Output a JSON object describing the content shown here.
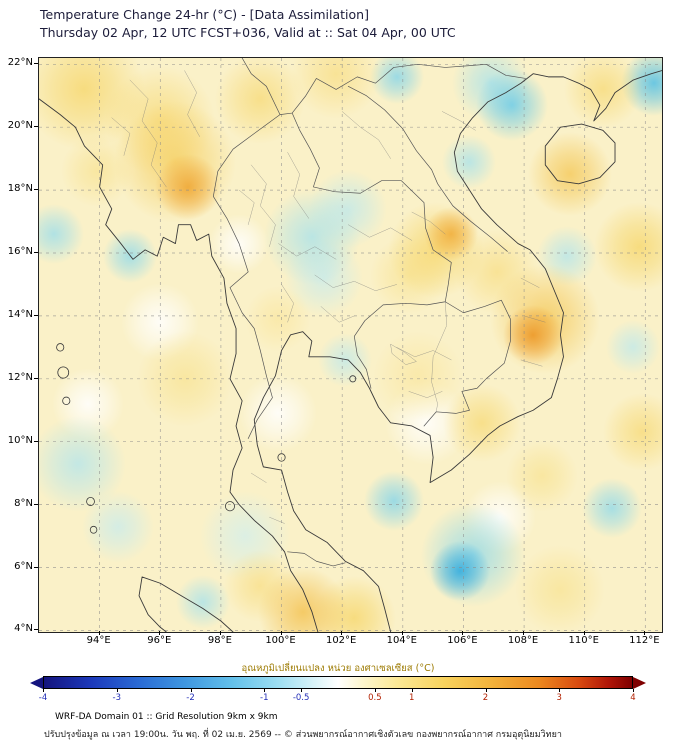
{
  "header": {
    "title": "Temperature Change 24-hr (°C) - [Data Assimilation]",
    "subtitle": "Thursday 02 Apr, 12 UTC FCST+036, Valid at :: Sat 04 Apr, 00 UTC"
  },
  "axes": {
    "lat_ticks": [
      {
        "value": 22,
        "label": "22°N"
      },
      {
        "value": 20,
        "label": "20°N"
      },
      {
        "value": 18,
        "label": "18°N"
      },
      {
        "value": 16,
        "label": "16°N"
      },
      {
        "value": 14,
        "label": "14°N"
      },
      {
        "value": 12,
        "label": "12°N"
      },
      {
        "value": 10,
        "label": "10°N"
      },
      {
        "value": 8,
        "label": "8°N"
      },
      {
        "value": 6,
        "label": "6°N"
      },
      {
        "value": 4,
        "label": "4°N"
      }
    ],
    "lon_ticks": [
      {
        "value": 94,
        "label": "94°E"
      },
      {
        "value": 96,
        "label": "96°E"
      },
      {
        "value": 98,
        "label": "98°E"
      },
      {
        "value": 100,
        "label": "100°E"
      },
      {
        "value": 102,
        "label": "102°E"
      },
      {
        "value": 104,
        "label": "104°E"
      },
      {
        "value": 106,
        "label": "106°E"
      },
      {
        "value": 108,
        "label": "108°E"
      },
      {
        "value": 110,
        "label": "110°E"
      },
      {
        "value": 112,
        "label": "112°E"
      }
    ]
  },
  "colorbar": {
    "title": "อุณหภูมิเปลี่ยนแปลง หน่วย องศาเซลเซียส (°C)",
    "min": -4,
    "max": 4,
    "negative_color": "#2430b8",
    "positive_color": "#b22000",
    "ticks": [
      {
        "value": -4,
        "label": "-4"
      },
      {
        "value": -3,
        "label": "-3"
      },
      {
        "value": -2,
        "label": "-2"
      },
      {
        "value": -1,
        "label": "-1"
      },
      {
        "value": -0.5,
        "label": "-0.5"
      },
      {
        "value": 0.5,
        "label": "0.5"
      },
      {
        "value": 1,
        "label": "1"
      },
      {
        "value": 2,
        "label": "2"
      },
      {
        "value": 3,
        "label": "3"
      },
      {
        "value": 4,
        "label": "4"
      }
    ]
  },
  "footer": {
    "line1": "WRF-DA Domain 01 :: Grid Resolution 9km x 9km",
    "line2": "ปรับปรุงข้อมูล ณ เวลา 19:00น. วัน พฤ. ที่ 02 เม.ย. 2569 -- © ส่วนพยากรณ์อากาศเชิงตัวเลข กองพยากรณ์อากาศ กรมอุตุนิยมวิทยา"
  },
  "chart_data": {
    "type": "heatmap",
    "title": "Temperature Change 24-hr (°C) - [Data Assimilation]",
    "units": "°C",
    "lon_range": [
      92.0,
      112.55
    ],
    "lat_range": [
      3.95,
      22.2
    ],
    "colorbar_range": [
      -4,
      4
    ],
    "anomaly_centers": [
      {
        "lon": 96.9,
        "lat": 18.1,
        "value": 1.7,
        "radius_deg": 1.1
      },
      {
        "lon": 96.5,
        "lat": 18.9,
        "value": 1.1,
        "radius_deg": 2.0
      },
      {
        "lon": 105.6,
        "lat": 16.6,
        "value": 1.6,
        "radius_deg": 0.9
      },
      {
        "lon": 105.1,
        "lat": 16.1,
        "value": 1.0,
        "radius_deg": 1.6
      },
      {
        "lon": 108.3,
        "lat": 13.4,
        "value": 1.9,
        "radius_deg": 1.0
      },
      {
        "lon": 108.7,
        "lat": 13.9,
        "value": 1.2,
        "radius_deg": 1.8
      },
      {
        "lon": 109.5,
        "lat": 18.5,
        "value": 1.2,
        "radius_deg": 1.4
      },
      {
        "lon": 110.6,
        "lat": 21.2,
        "value": 0.9,
        "radius_deg": 1.3
      },
      {
        "lon": 93.5,
        "lat": 21.2,
        "value": 1.0,
        "radius_deg": 2.0
      },
      {
        "lon": 96.0,
        "lat": 20.2,
        "value": 0.9,
        "radius_deg": 1.8
      },
      {
        "lon": 99.3,
        "lat": 20.9,
        "value": 0.9,
        "radius_deg": 1.5
      },
      {
        "lon": 101.8,
        "lat": 21.7,
        "value": 0.8,
        "radius_deg": 1.5
      },
      {
        "lon": 111.8,
        "lat": 16.2,
        "value": 1.0,
        "radius_deg": 1.5
      },
      {
        "lon": 111.9,
        "lat": 10.3,
        "value": 0.9,
        "radius_deg": 1.3
      },
      {
        "lon": 106.6,
        "lat": 10.6,
        "value": 0.9,
        "radius_deg": 1.3
      },
      {
        "lon": 108.6,
        "lat": 8.9,
        "value": 0.7,
        "radius_deg": 1.2
      },
      {
        "lon": 100.7,
        "lat": 4.6,
        "value": 1.3,
        "radius_deg": 1.5
      },
      {
        "lon": 102.4,
        "lat": 4.4,
        "value": 1.0,
        "radius_deg": 1.4
      },
      {
        "lon": 99.3,
        "lat": 5.4,
        "value": 0.8,
        "radius_deg": 1.2
      },
      {
        "lon": 109.2,
        "lat": 5.3,
        "value": 0.7,
        "radius_deg": 1.5
      },
      {
        "lon": 96.8,
        "lat": 12.0,
        "value": 0.7,
        "radius_deg": 1.6
      },
      {
        "lon": 99.9,
        "lat": 13.9,
        "value": 0.6,
        "radius_deg": 1.1
      },
      {
        "lon": 104.5,
        "lat": 12.1,
        "value": 0.6,
        "radius_deg": 1.5
      },
      {
        "lon": 104.2,
        "lat": 15.3,
        "value": 0.7,
        "radius_deg": 1.3
      },
      {
        "lon": 107.1,
        "lat": 15.4,
        "value": 0.8,
        "radius_deg": 1.4
      },
      {
        "lon": 93.9,
        "lat": 18.6,
        "value": 0.7,
        "radius_deg": 1.2
      },
      {
        "lon": 103.8,
        "lat": 21.6,
        "value": -1.2,
        "radius_deg": 0.9
      },
      {
        "lon": 107.6,
        "lat": 20.7,
        "value": -1.4,
        "radius_deg": 1.2
      },
      {
        "lon": 106.9,
        "lat": 21.4,
        "value": -0.9,
        "radius_deg": 1.3
      },
      {
        "lon": 112.3,
        "lat": 21.4,
        "value": -1.6,
        "radius_deg": 1.1
      },
      {
        "lon": 106.2,
        "lat": 18.9,
        "value": -0.9,
        "radius_deg": 0.9
      },
      {
        "lon": 101.0,
        "lat": 16.5,
        "value": -0.9,
        "radius_deg": 1.6
      },
      {
        "lon": 102.2,
        "lat": 17.4,
        "value": -0.7,
        "radius_deg": 1.3
      },
      {
        "lon": 101.4,
        "lat": 15.2,
        "value": -0.6,
        "radius_deg": 1.3
      },
      {
        "lon": 95.0,
        "lat": 15.9,
        "value": -1.1,
        "radius_deg": 0.9
      },
      {
        "lon": 92.5,
        "lat": 16.6,
        "value": -1.0,
        "radius_deg": 1.0
      },
      {
        "lon": 109.4,
        "lat": 15.9,
        "value": -0.8,
        "radius_deg": 1.0
      },
      {
        "lon": 111.6,
        "lat": 13.0,
        "value": -0.7,
        "radius_deg": 0.9
      },
      {
        "lon": 102.1,
        "lat": 12.6,
        "value": -0.7,
        "radius_deg": 0.9
      },
      {
        "lon": 103.7,
        "lat": 8.1,
        "value": -1.2,
        "radius_deg": 1.0
      },
      {
        "lon": 105.9,
        "lat": 5.9,
        "value": -1.9,
        "radius_deg": 1.0
      },
      {
        "lon": 106.3,
        "lat": 6.4,
        "value": -1.1,
        "radius_deg": 1.7
      },
      {
        "lon": 110.9,
        "lat": 7.9,
        "value": -1.1,
        "radius_deg": 1.0
      },
      {
        "lon": 93.3,
        "lat": 9.3,
        "value": -0.8,
        "radius_deg": 1.6
      },
      {
        "lon": 94.6,
        "lat": 7.3,
        "value": -0.6,
        "radius_deg": 1.2
      },
      {
        "lon": 98.8,
        "lat": 7.0,
        "value": -0.5,
        "radius_deg": 1.5
      },
      {
        "lon": 97.4,
        "lat": 4.9,
        "value": -0.9,
        "radius_deg": 0.9
      },
      {
        "lon": 104.8,
        "lat": 10.6,
        "value": 0,
        "radius_deg": 1.4
      },
      {
        "lon": 96.0,
        "lat": 13.8,
        "value": 0,
        "radius_deg": 1.3
      },
      {
        "lon": 99.9,
        "lat": 10.9,
        "value": 0,
        "radius_deg": 1.3
      },
      {
        "lon": 107.2,
        "lat": 7.6,
        "value": 0,
        "radius_deg": 1.2
      },
      {
        "lon": 93.6,
        "lat": 11.2,
        "value": 0,
        "radius_deg": 1.2
      },
      {
        "lon": 98.6,
        "lat": 16.3,
        "value": 0,
        "radius_deg": 1.0
      }
    ]
  }
}
